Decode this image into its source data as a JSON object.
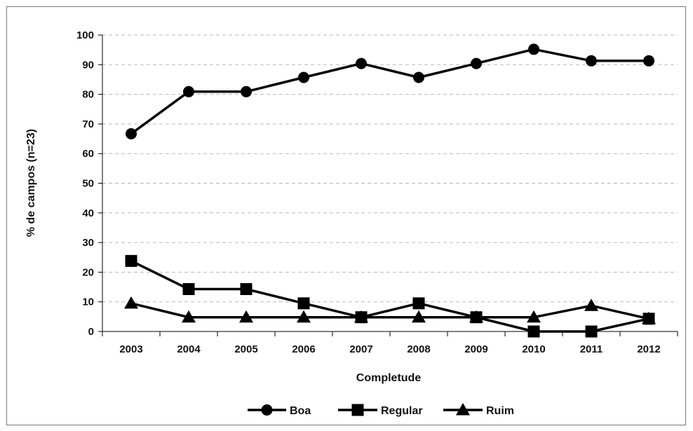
{
  "chart_data": {
    "type": "line",
    "categories": [
      "2003",
      "2004",
      "2005",
      "2006",
      "2007",
      "2008",
      "2009",
      "2010",
      "2011",
      "2012"
    ],
    "series": [
      {
        "name": "Boa",
        "marker": "circle",
        "values": [
          66.7,
          80.9,
          80.9,
          85.7,
          90.4,
          85.7,
          90.4,
          95.2,
          91.3,
          91.3
        ]
      },
      {
        "name": "Regular",
        "marker": "square",
        "values": [
          23.8,
          14.3,
          14.3,
          9.5,
          4.8,
          9.5,
          4.8,
          0,
          0,
          4.3
        ]
      },
      {
        "name": "Ruim",
        "marker": "triangle",
        "values": [
          9.5,
          4.8,
          4.8,
          4.8,
          4.8,
          4.8,
          4.8,
          4.8,
          8.7,
          4.3
        ]
      }
    ],
    "xlabel": "Completude",
    "ylabel": "% de campos (n=23)",
    "ylim": [
      0,
      100
    ],
    "yticks": [
      "0",
      "10",
      "20",
      "30",
      "40",
      "50",
      "60",
      "70",
      "80",
      "90",
      "100"
    ],
    "grid": "horizontal dashed",
    "legend": "bottom",
    "line_color": "#000000"
  }
}
